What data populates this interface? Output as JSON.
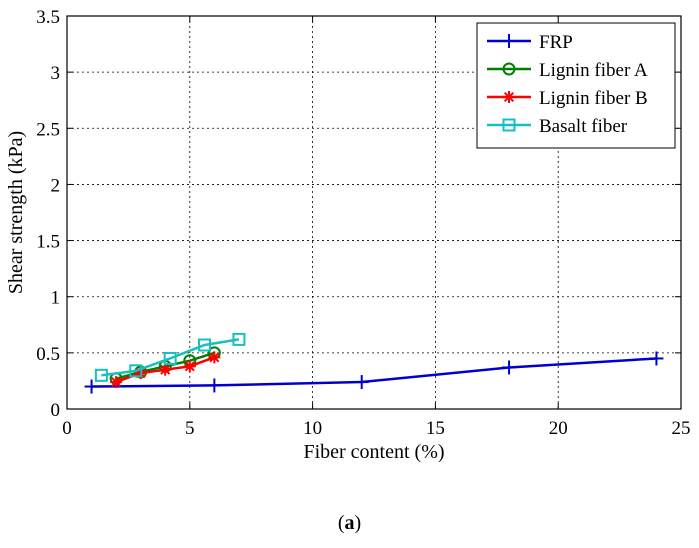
{
  "caption": {
    "open": "(",
    "letter": "a",
    "close": ")"
  },
  "chart_data": {
    "type": "line",
    "title": "",
    "xlabel": "Fiber content (%)",
    "ylabel": "Shear strength (kPa)",
    "xlim": [
      0,
      25
    ],
    "ylim": [
      0,
      3.5
    ],
    "xticks": [
      0,
      5,
      10,
      15,
      20,
      25
    ],
    "yticks": [
      0,
      0.5,
      1,
      1.5,
      2,
      2.5,
      3,
      3.5
    ],
    "xtick_labels": [
      "0",
      "5",
      "10",
      "15",
      "20",
      "25"
    ],
    "ytick_labels": [
      "0",
      "0.5",
      "1",
      "1.5",
      "2",
      "2.5",
      "3",
      "3.5"
    ],
    "grid": true,
    "legend_position": "top-right",
    "series": [
      {
        "name": "FRP",
        "color": "#0000cc",
        "marker": "plus",
        "x": [
          1,
          6,
          12,
          18,
          24
        ],
        "y": [
          0.2,
          0.21,
          0.24,
          0.37,
          0.45
        ]
      },
      {
        "name": "Lignin fiber A",
        "color": "#008000",
        "marker": "circle",
        "x": [
          2,
          3,
          4,
          5,
          6
        ],
        "y": [
          0.27,
          0.33,
          0.38,
          0.43,
          0.5
        ]
      },
      {
        "name": "Lignin fiber B",
        "color": "#ff0000",
        "marker": "asterisk",
        "x": [
          2,
          3,
          4,
          5,
          6
        ],
        "y": [
          0.24,
          0.32,
          0.35,
          0.38,
          0.46
        ]
      },
      {
        "name": "Basalt fiber",
        "color": "#17bfbf",
        "marker": "square",
        "x": [
          1.4,
          2.8,
          4.2,
          5.6,
          7
        ],
        "y": [
          0.3,
          0.34,
          0.45,
          0.57,
          0.62
        ]
      }
    ]
  }
}
